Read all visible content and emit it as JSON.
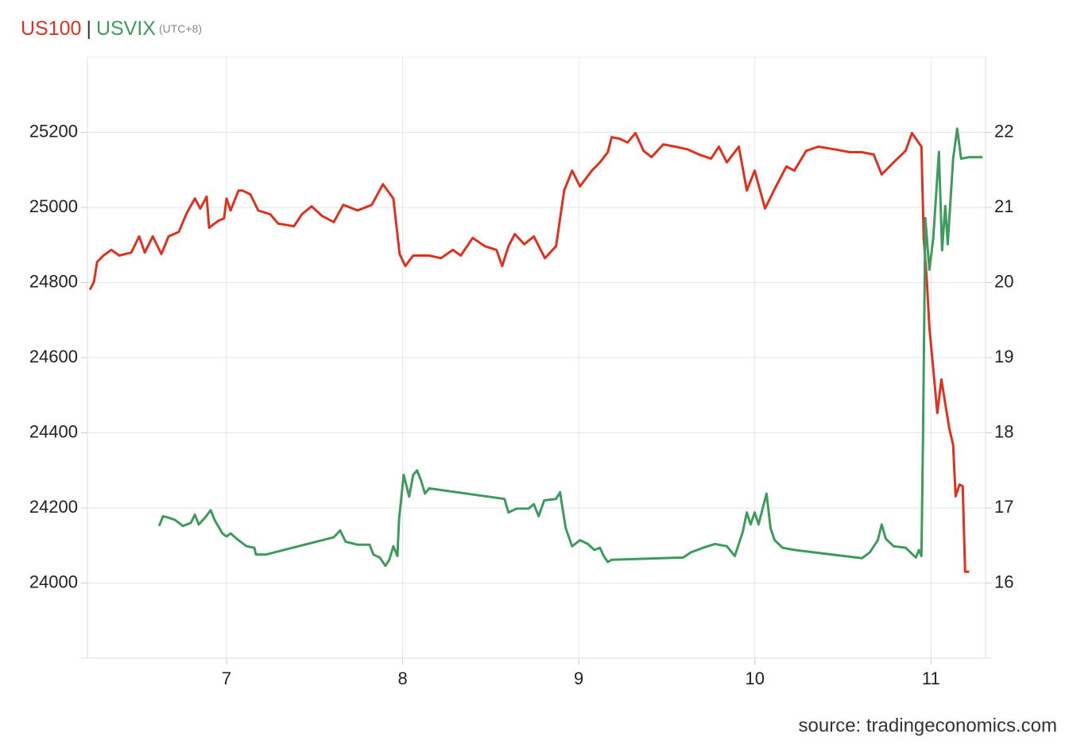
{
  "chart_data": {
    "type": "line",
    "series": [
      {
        "name": "US100",
        "color": "#e0301e",
        "axis": "y",
        "x": [
          6.224,
          6.247,
          6.265,
          6.301,
          6.346,
          6.391,
          6.459,
          6.504,
          6.536,
          6.581,
          6.63,
          6.671,
          6.729,
          6.775,
          6.82,
          6.851,
          6.887,
          6.901,
          6.955,
          6.986,
          7.0,
          7.023,
          7.068,
          7.09,
          7.135,
          7.18,
          7.248,
          7.293,
          7.383,
          7.428,
          7.483,
          7.541,
          7.609,
          7.663,
          7.744,
          7.825,
          7.857,
          7.888,
          7.947,
          7.983,
          8.015,
          8.06,
          8.15,
          8.218,
          8.285,
          8.33,
          8.398,
          8.466,
          8.533,
          8.565,
          8.601,
          8.637,
          8.691,
          8.745,
          8.808,
          8.871,
          8.917,
          8.962,
          9.007,
          9.074,
          9.12,
          9.165,
          9.187,
          9.232,
          9.277,
          9.322,
          9.368,
          9.413,
          9.48,
          9.548,
          9.616,
          9.683,
          9.751,
          9.796,
          9.841,
          9.909,
          9.954,
          9.999,
          10.058,
          10.112,
          10.179,
          10.224,
          10.292,
          10.36,
          10.45,
          10.54,
          10.608,
          10.675,
          10.72,
          10.788,
          10.856,
          10.892,
          10.946,
          10.959,
          10.977,
          10.991,
          11.036,
          11.059,
          11.104,
          11.126,
          11.14,
          11.162,
          11.18,
          11.194,
          11.217
        ],
        "values": [
          24781,
          24802,
          24855,
          24872,
          24887,
          24872,
          24880,
          24923,
          24880,
          24923,
          24876,
          24923,
          24935,
          24986,
          25024,
          24997,
          25029,
          24946,
          24965,
          24971,
          25024,
          24992,
          25045,
          25045,
          25035,
          24992,
          24982,
          24957,
          24950,
          24982,
          25003,
          24978,
          24961,
          25007,
          24992,
          25007,
          25035,
          25062,
          25024,
          24876,
          24844,
          24872,
          24872,
          24865,
          24887,
          24872,
          24919,
          24897,
          24887,
          24844,
          24897,
          24929,
          24902,
          24923,
          24865,
          24897,
          25045,
          25098,
          25056,
          25098,
          25120,
          25147,
          25187,
          25183,
          25173,
          25198,
          25151,
          25134,
          25168,
          25162,
          25155,
          25141,
          25130,
          25162,
          25120,
          25162,
          25045,
          25098,
          24997,
          25049,
          25109,
          25098,
          25151,
          25162,
          25155,
          25147,
          25147,
          25141,
          25088,
          25120,
          25151,
          25198,
          25162,
          24919,
          24802,
          24681,
          24453,
          24542,
          24411,
          24368,
          24231,
          24262,
          24258,
          24030,
          24030
        ]
      },
      {
        "name": "USVIX",
        "color": "#3f9a5e",
        "axis": "y2",
        "x": [
          6.617,
          6.639,
          6.671,
          6.707,
          6.752,
          6.797,
          6.82,
          6.842,
          6.878,
          6.91,
          6.932,
          6.977,
          7.0,
          7.023,
          7.068,
          7.113,
          7.158,
          7.167,
          7.225,
          7.609,
          7.645,
          7.676,
          7.744,
          7.812,
          7.834,
          7.87,
          7.902,
          7.924,
          7.947,
          7.97,
          7.979,
          8.006,
          8.037,
          8.06,
          8.082,
          8.105,
          8.127,
          8.15,
          8.578,
          8.601,
          8.646,
          8.714,
          8.745,
          8.772,
          8.804,
          8.871,
          8.894,
          8.908,
          8.926,
          8.962,
          9.007,
          9.052,
          9.088,
          9.12,
          9.142,
          9.165,
          9.187,
          9.593,
          9.638,
          9.706,
          9.773,
          9.841,
          9.886,
          9.931,
          9.954,
          9.976,
          9.999,
          10.021,
          10.044,
          10.066,
          10.089,
          10.112,
          10.157,
          10.224,
          10.608,
          10.653,
          10.698,
          10.72,
          10.743,
          10.788,
          10.856,
          10.914,
          10.932,
          10.946,
          10.955,
          10.968,
          10.991,
          11.013,
          11.045,
          11.063,
          11.081,
          11.095,
          11.126,
          11.149,
          11.171,
          11.217,
          11.293
        ],
        "values": [
          16.76,
          16.89,
          16.87,
          16.84,
          16.76,
          16.8,
          16.91,
          16.78,
          16.87,
          16.97,
          16.84,
          16.66,
          16.62,
          16.66,
          16.57,
          16.49,
          16.47,
          16.38,
          16.38,
          16.61,
          16.7,
          16.55,
          16.51,
          16.51,
          16.38,
          16.34,
          16.23,
          16.31,
          16.49,
          16.36,
          16.84,
          17.44,
          17.15,
          17.44,
          17.5,
          17.36,
          17.19,
          17.26,
          17.12,
          16.94,
          16.99,
          16.99,
          17.05,
          16.89,
          17.1,
          17.12,
          17.21,
          16.99,
          16.73,
          16.49,
          16.57,
          16.52,
          16.44,
          16.47,
          16.36,
          16.28,
          16.31,
          16.34,
          16.41,
          16.47,
          16.52,
          16.49,
          16.36,
          16.68,
          16.94,
          16.78,
          16.94,
          16.78,
          16.99,
          17.19,
          16.73,
          16.57,
          16.47,
          16.44,
          16.33,
          16.41,
          16.57,
          16.78,
          16.59,
          16.49,
          16.47,
          16.34,
          16.44,
          16.36,
          17.95,
          20.86,
          20.17,
          20.59,
          21.74,
          20.43,
          21.02,
          20.51,
          21.65,
          22.05,
          21.65,
          21.67,
          21.67
        ]
      }
    ],
    "title_separator": "|",
    "subtitle": "(UTC+8)",
    "source": "source: tradingeconomics.com",
    "xlim": [
      6.21,
      11.31
    ],
    "xticks": [
      7,
      8,
      9,
      10,
      11
    ],
    "ylim": [
      23800,
      25400
    ],
    "yticks": [
      24000,
      24200,
      24400,
      24600,
      24800,
      25000,
      25200
    ],
    "y2lim": [
      15,
      23
    ],
    "y2ticks": [
      16,
      17,
      18,
      19,
      20,
      21,
      22
    ],
    "grid": true
  }
}
